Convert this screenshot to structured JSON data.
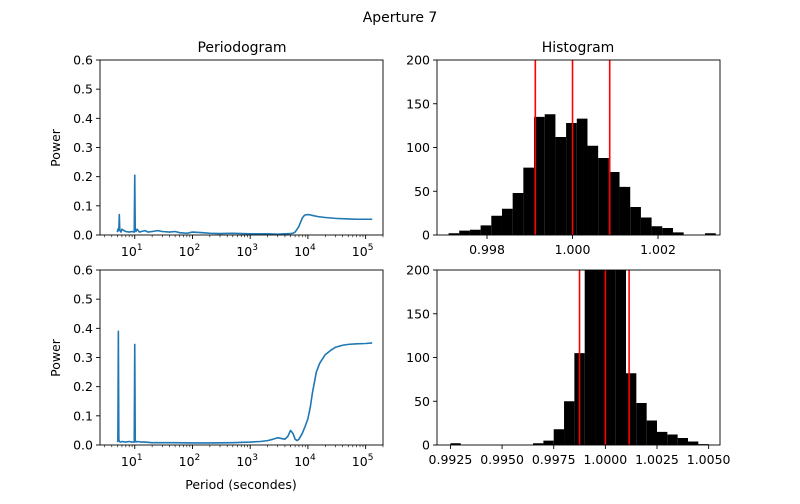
{
  "suptitle": "Aperture 7",
  "colors": {
    "periodogram": "#1f77b4",
    "histogram": "#000000",
    "marker": "#ff0000"
  },
  "chart_data": [
    {
      "type": "line",
      "title": "Periodogram",
      "xlabel": "",
      "ylabel": "Power",
      "xscale": "log",
      "xlim": [
        2.5,
        200000
      ],
      "ylim": [
        0,
        0.6
      ],
      "yticks": [
        "0.0",
        "0.1",
        "0.2",
        "0.3",
        "0.4",
        "0.5",
        "0.6"
      ],
      "xticks": [
        {
          "value": 10,
          "base": "10",
          "exp": "1"
        },
        {
          "value": 100,
          "base": "10",
          "exp": "2"
        },
        {
          "value": 1000,
          "base": "10",
          "exp": "3"
        },
        {
          "value": 10000,
          "base": "10",
          "exp": "4"
        },
        {
          "value": 100000,
          "base": "10",
          "exp": "5"
        }
      ],
      "x": [
        5,
        5.1,
        5.3,
        5.4,
        5.5,
        5.6,
        5.8,
        6,
        6.5,
        7,
        8,
        9,
        9.8,
        10,
        10.2,
        10.5,
        11,
        12,
        13,
        15,
        17,
        20,
        25,
        30,
        40,
        50,
        60,
        80,
        100,
        150,
        200,
        300,
        500,
        700,
        1000,
        1500,
        2000,
        3000,
        4000,
        5000,
        5500,
        6000,
        6500,
        7000,
        7500,
        8000,
        8500,
        9000,
        10000,
        11000,
        12000,
        15000,
        20000,
        30000,
        50000,
        70000,
        100000,
        130000
      ],
      "y": [
        0.01,
        0.02,
        0.015,
        0.07,
        0.02,
        0.015,
        0.01,
        0.02,
        0.015,
        0.012,
        0.01,
        0.012,
        0.01,
        0.205,
        0.015,
        0.012,
        0.02,
        0.01,
        0.012,
        0.015,
        0.01,
        0.012,
        0.015,
        0.012,
        0.01,
        0.012,
        0.008,
        0.006,
        0.01,
        0.008,
        0.006,
        0.005,
        0.006,
        0.005,
        0.004,
        0.004,
        0.004,
        0.003,
        0.004,
        0.005,
        0.006,
        0.01,
        0.02,
        0.03,
        0.045,
        0.058,
        0.065,
        0.069,
        0.07,
        0.069,
        0.067,
        0.063,
        0.06,
        0.057,
        0.055,
        0.054,
        0.054,
        0.054
      ]
    },
    {
      "type": "bar",
      "title": "Histogram",
      "xlabel": "",
      "ylabel": "",
      "xlim": [
        0.99683,
        1.00345
      ],
      "ylim": [
        0,
        200
      ],
      "yticks": [
        "0",
        "50",
        "100",
        "150",
        "200"
      ],
      "xticks": [
        {
          "value": 0.998,
          "label": "0.998"
        },
        {
          "value": 1.0,
          "label": "1.000"
        },
        {
          "value": 1.002,
          "label": "1.002"
        }
      ],
      "bin_edges": [
        0.9971,
        0.99735,
        0.9976,
        0.99785,
        0.9981,
        0.99835,
        0.9986,
        0.99885,
        0.9991,
        0.99935,
        0.9996,
        0.99985,
        1.0001,
        1.00035,
        1.0006,
        1.00085,
        1.0011,
        1.00135,
        1.0016,
        1.00185,
        1.0021,
        1.00235,
        1.0026,
        1.00285,
        1.0031,
        1.00335
      ],
      "counts": [
        2,
        5,
        6,
        11,
        22,
        30,
        48,
        77,
        135,
        138,
        112,
        128,
        133,
        102,
        88,
        72,
        55,
        32,
        20,
        10,
        8,
        3,
        0,
        0,
        2
      ],
      "vlines": [
        0.99913,
        1.0,
        1.00087
      ]
    },
    {
      "type": "line",
      "title": "",
      "xlabel": "Period (secondes)",
      "ylabel": "Power",
      "xscale": "log",
      "xlim": [
        2.5,
        200000
      ],
      "ylim": [
        0,
        0.6
      ],
      "yticks": [
        "0.0",
        "0.1",
        "0.2",
        "0.3",
        "0.4",
        "0.5",
        "0.6"
      ],
      "xticks": [
        {
          "value": 10,
          "base": "10",
          "exp": "1"
        },
        {
          "value": 100,
          "base": "10",
          "exp": "2"
        },
        {
          "value": 1000,
          "base": "10",
          "exp": "3"
        },
        {
          "value": 10000,
          "base": "10",
          "exp": "4"
        },
        {
          "value": 100000,
          "base": "10",
          "exp": "5"
        }
      ],
      "x": [
        5,
        5.1,
        5.2,
        5.3,
        5.4,
        5.6,
        6,
        7,
        8,
        9,
        9.8,
        10,
        10.2,
        10.5,
        11,
        13,
        15,
        20,
        30,
        50,
        100,
        200,
        500,
        1000,
        1500,
        2000,
        2500,
        3000,
        3500,
        4000,
        4500,
        5000,
        5500,
        6000,
        6500,
        7000,
        8000,
        9000,
        10000,
        11000,
        12000,
        14000,
        16000,
        20000,
        25000,
        30000,
        40000,
        50000,
        70000,
        100000,
        130000
      ],
      "y": [
        0.01,
        0.015,
        0.39,
        0.02,
        0.012,
        0.01,
        0.012,
        0.01,
        0.012,
        0.01,
        0.01,
        0.345,
        0.015,
        0.01,
        0.012,
        0.01,
        0.01,
        0.008,
        0.008,
        0.008,
        0.007,
        0.007,
        0.008,
        0.01,
        0.012,
        0.015,
        0.02,
        0.025,
        0.022,
        0.02,
        0.03,
        0.05,
        0.04,
        0.02,
        0.015,
        0.02,
        0.04,
        0.065,
        0.09,
        0.13,
        0.18,
        0.25,
        0.28,
        0.31,
        0.325,
        0.335,
        0.342,
        0.345,
        0.347,
        0.348,
        0.35
      ]
    },
    {
      "type": "bar",
      "title": "",
      "xlabel": "",
      "ylabel": "",
      "xlim": [
        0.99185,
        1.00555
      ],
      "ylim": [
        0,
        200
      ],
      "yticks": [
        "0",
        "50",
        "100",
        "150",
        "200"
      ],
      "xticks": [
        {
          "value": 0.9925,
          "label": "0.9925"
        },
        {
          "value": 0.995,
          "label": "0.9950"
        },
        {
          "value": 0.9975,
          "label": "0.9975"
        },
        {
          "value": 1.0,
          "label": "1.0000"
        },
        {
          "value": 1.0025,
          "label": "1.0025"
        },
        {
          "value": 1.005,
          "label": "1.0050"
        }
      ],
      "bin_edges": [
        0.9925,
        0.993,
        0.9935,
        0.994,
        0.9945,
        0.995,
        0.9955,
        0.996,
        0.9965,
        0.997,
        0.9975,
        0.998,
        0.9985,
        0.999,
        0.9995,
        1.0,
        1.0005,
        1.001,
        1.0015,
        1.002,
        1.0025,
        1.003,
        1.0035,
        1.004,
        1.0045,
        1.005
      ],
      "counts": [
        2,
        0,
        0,
        0,
        0,
        0,
        0,
        0,
        2,
        5,
        18,
        50,
        105,
        200,
        260,
        262,
        200,
        82,
        48,
        28,
        15,
        12,
        8,
        4,
        1
      ],
      "vlines": [
        0.99875,
        1.0,
        1.00115
      ]
    }
  ]
}
